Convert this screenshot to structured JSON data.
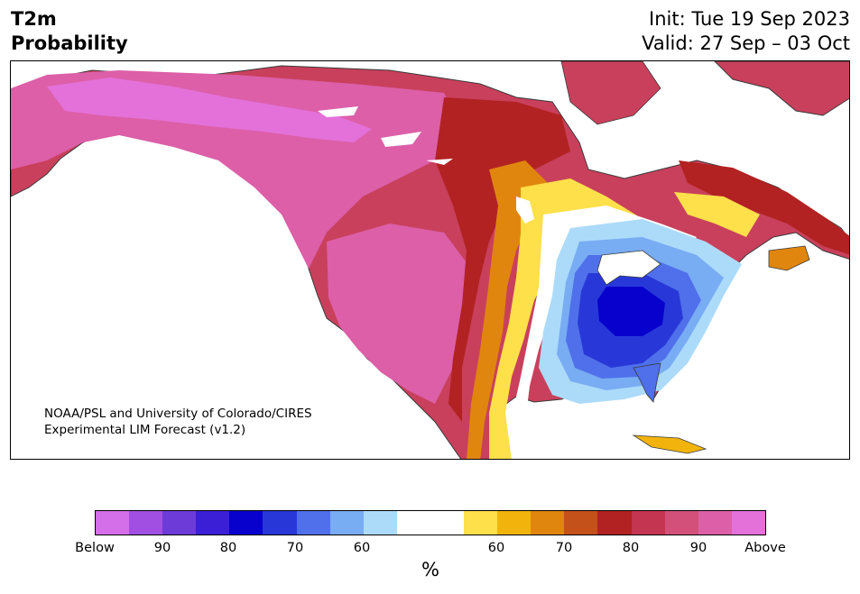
{
  "header": {
    "title_line1": "T2m",
    "title_line2": "Probability",
    "init_text": "Init: Tue 19 Sep 2023",
    "valid_text": "Valid: 27 Sep – 03 Oct"
  },
  "credit": {
    "line1": "NOAA/PSL and University of Colorado/CIRES",
    "line2": "Experimental LIM Forecast (v1.2)"
  },
  "colorbar": {
    "colors": [
      "#d56ee9",
      "#a14fe3",
      "#6c3bd8",
      "#3b1fd6",
      "#0800cd",
      "#2838d8",
      "#4f70ea",
      "#78acf3",
      "#acdbfa",
      "#ffffff",
      "#ffffff",
      "#fde04a",
      "#f2b40c",
      "#e0860e",
      "#c5511a",
      "#b22222",
      "#c43552",
      "#d3507a",
      "#dc5fa8",
      "#e471d9"
    ],
    "tick_labels": [
      "Below",
      "90",
      "80",
      "70",
      "60",
      "60",
      "70",
      "80",
      "90",
      "Above"
    ],
    "unit": "%"
  },
  "map": {
    "region": "North America",
    "cold_anomaly_center": "Great Lakes / Ohio Valley",
    "warm_anomaly_center": "Canada and western United States"
  }
}
